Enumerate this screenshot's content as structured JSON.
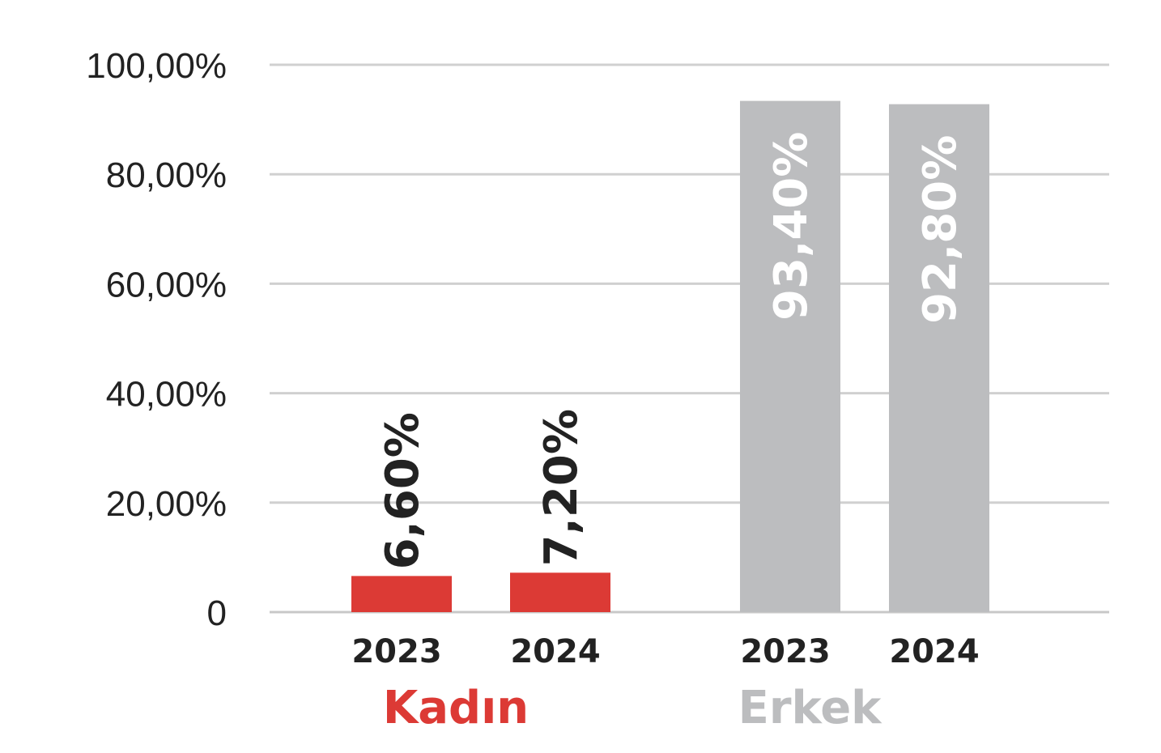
{
  "chart_data": {
    "type": "bar",
    "title": "",
    "xlabel": "",
    "ylabel": "",
    "ylim": [
      0,
      100
    ],
    "yticks": [
      0,
      20,
      40,
      60,
      80,
      100
    ],
    "ytick_labels": [
      "0",
      "20,00%",
      "40,00%",
      "60,00%",
      "80,00%",
      "100,00%"
    ],
    "grid": true,
    "groups": [
      {
        "name": "Kadın",
        "color": "#dc3a35",
        "label_color": "#dc3a35",
        "value_label_color": "#222222",
        "bars": [
          {
            "year": "2023",
            "value": 6.6,
            "label": "6,60%"
          },
          {
            "year": "2024",
            "value": 7.2,
            "label": "7,20%"
          }
        ]
      },
      {
        "name": "Erkek",
        "color": "#bcbdbf",
        "label_color": "#bcbdbf",
        "value_label_color": "#ffffff",
        "bars": [
          {
            "year": "2023",
            "value": 93.4,
            "label": "93,40%"
          },
          {
            "year": "2024",
            "value": 92.8,
            "label": "92,80%"
          }
        ]
      }
    ]
  },
  "colors": {
    "grid": "#d0d0d0",
    "axis": "#c8c8c8",
    "text": "#222222"
  }
}
